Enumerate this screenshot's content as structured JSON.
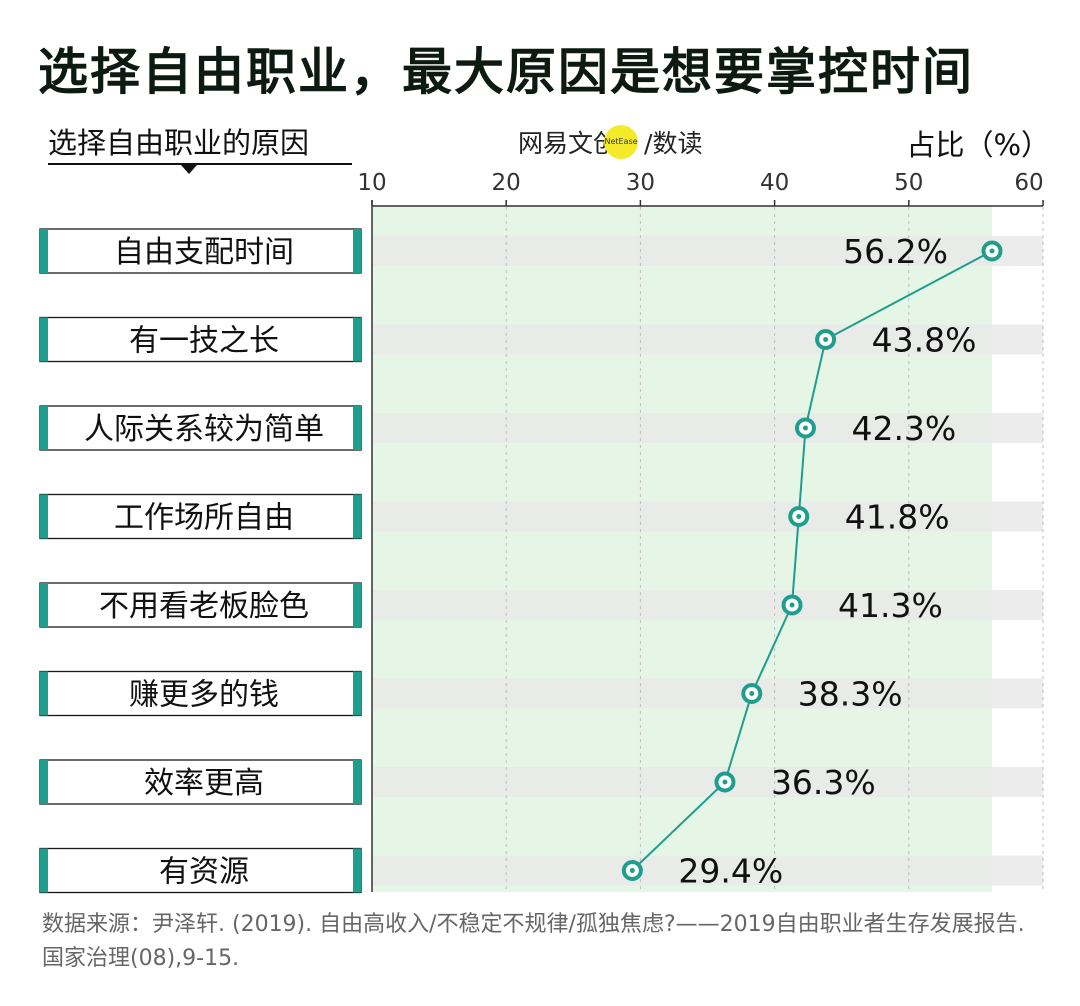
{
  "title": "选择自由职业，最大原因是想要掌控时间",
  "subtitle": "选择自由职业的原因",
  "brand": {
    "name": "网易文创",
    "badge": "NetEase",
    "suffix": "/数读"
  },
  "unit_label": "占比（%）",
  "source": "数据来源：尹泽轩. (2019). 自由高收入/不稳定不规律/孤独焦虑?——2019自由职业者生存发展报告. 国家治理(08),9-15.",
  "colors": {
    "accent": "#1e9e8c",
    "plot_bg": "#e6f6e6",
    "bar_bg": "#e9e9e9",
    "marker_fill": "#ffffff"
  },
  "chart_data": {
    "type": "line",
    "orientation": "horizontal",
    "categories": [
      "自由支配时间",
      "有一技之长",
      "人际关系较为简单",
      "工作场所自由",
      "不用看老板脸色",
      "赚更多的钱",
      "效率更高",
      "有资源"
    ],
    "values": [
      56.2,
      43.8,
      42.3,
      41.8,
      41.3,
      38.3,
      36.3,
      29.4
    ],
    "value_labels": [
      "56.2%",
      "43.8%",
      "42.3%",
      "41.8%",
      "41.3%",
      "38.3%",
      "36.3%",
      "29.4%"
    ],
    "xlim": [
      10,
      60
    ],
    "xticks": [
      10,
      20,
      30,
      40,
      50,
      60
    ],
    "grid": true
  }
}
